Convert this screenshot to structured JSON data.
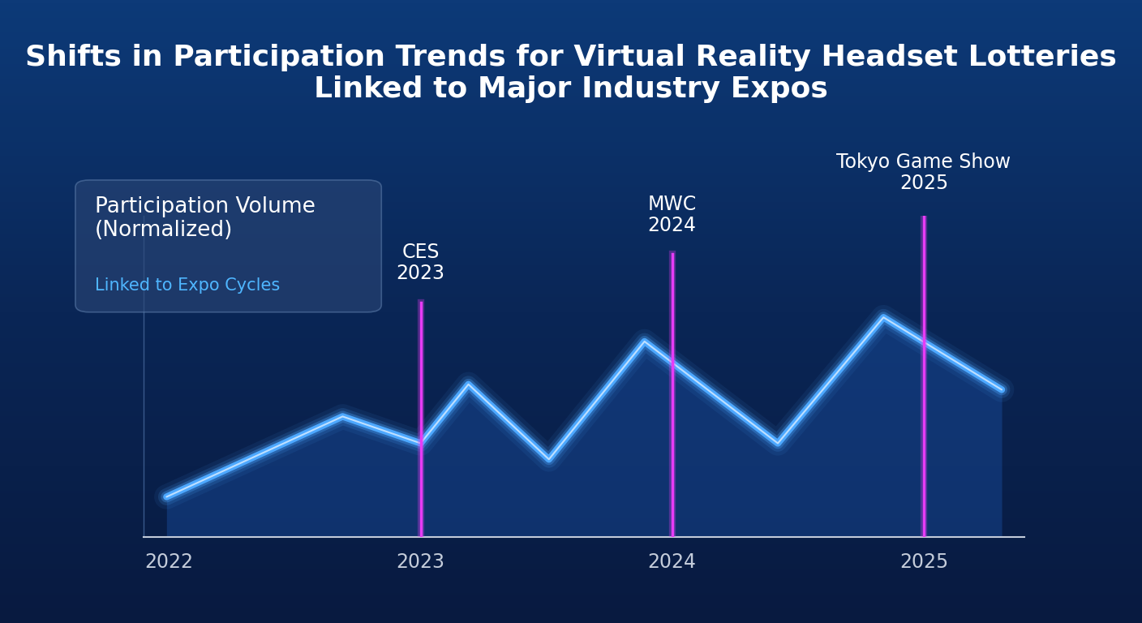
{
  "chart_data": {
    "type": "line",
    "title": "Shifts in Participation Trends for Virtual Reality Headset Lotteries Linked to Major Industry Expos",
    "legend_box": {
      "title": "Participation Volume\n(Normalized)",
      "subtitle": "Linked to Expo Cycles"
    },
    "x": [
      2021.99,
      2022.69,
      2023.0,
      2023.19,
      2023.51,
      2023.89,
      2024.42,
      2024.84,
      2025.31
    ],
    "values": [
      15,
      45,
      35,
      57,
      29,
      73,
      35,
      82,
      55
    ],
    "color": "#4da8ff",
    "xlim": [
      2021.9,
      2025.4
    ],
    "xticks": [
      2022,
      2023,
      2024,
      2025
    ],
    "ylim": [
      0,
      120
    ],
    "yticks": [],
    "tick_labels": "x",
    "grid": false,
    "events": [
      {
        "x": 2023,
        "label": "CES\n2023"
      },
      {
        "x": 2024,
        "label": "MWC\n2024"
      },
      {
        "x": 2025,
        "label": "Tokyo Game Show\n2025"
      }
    ],
    "event_color": "#e63cf5"
  }
}
